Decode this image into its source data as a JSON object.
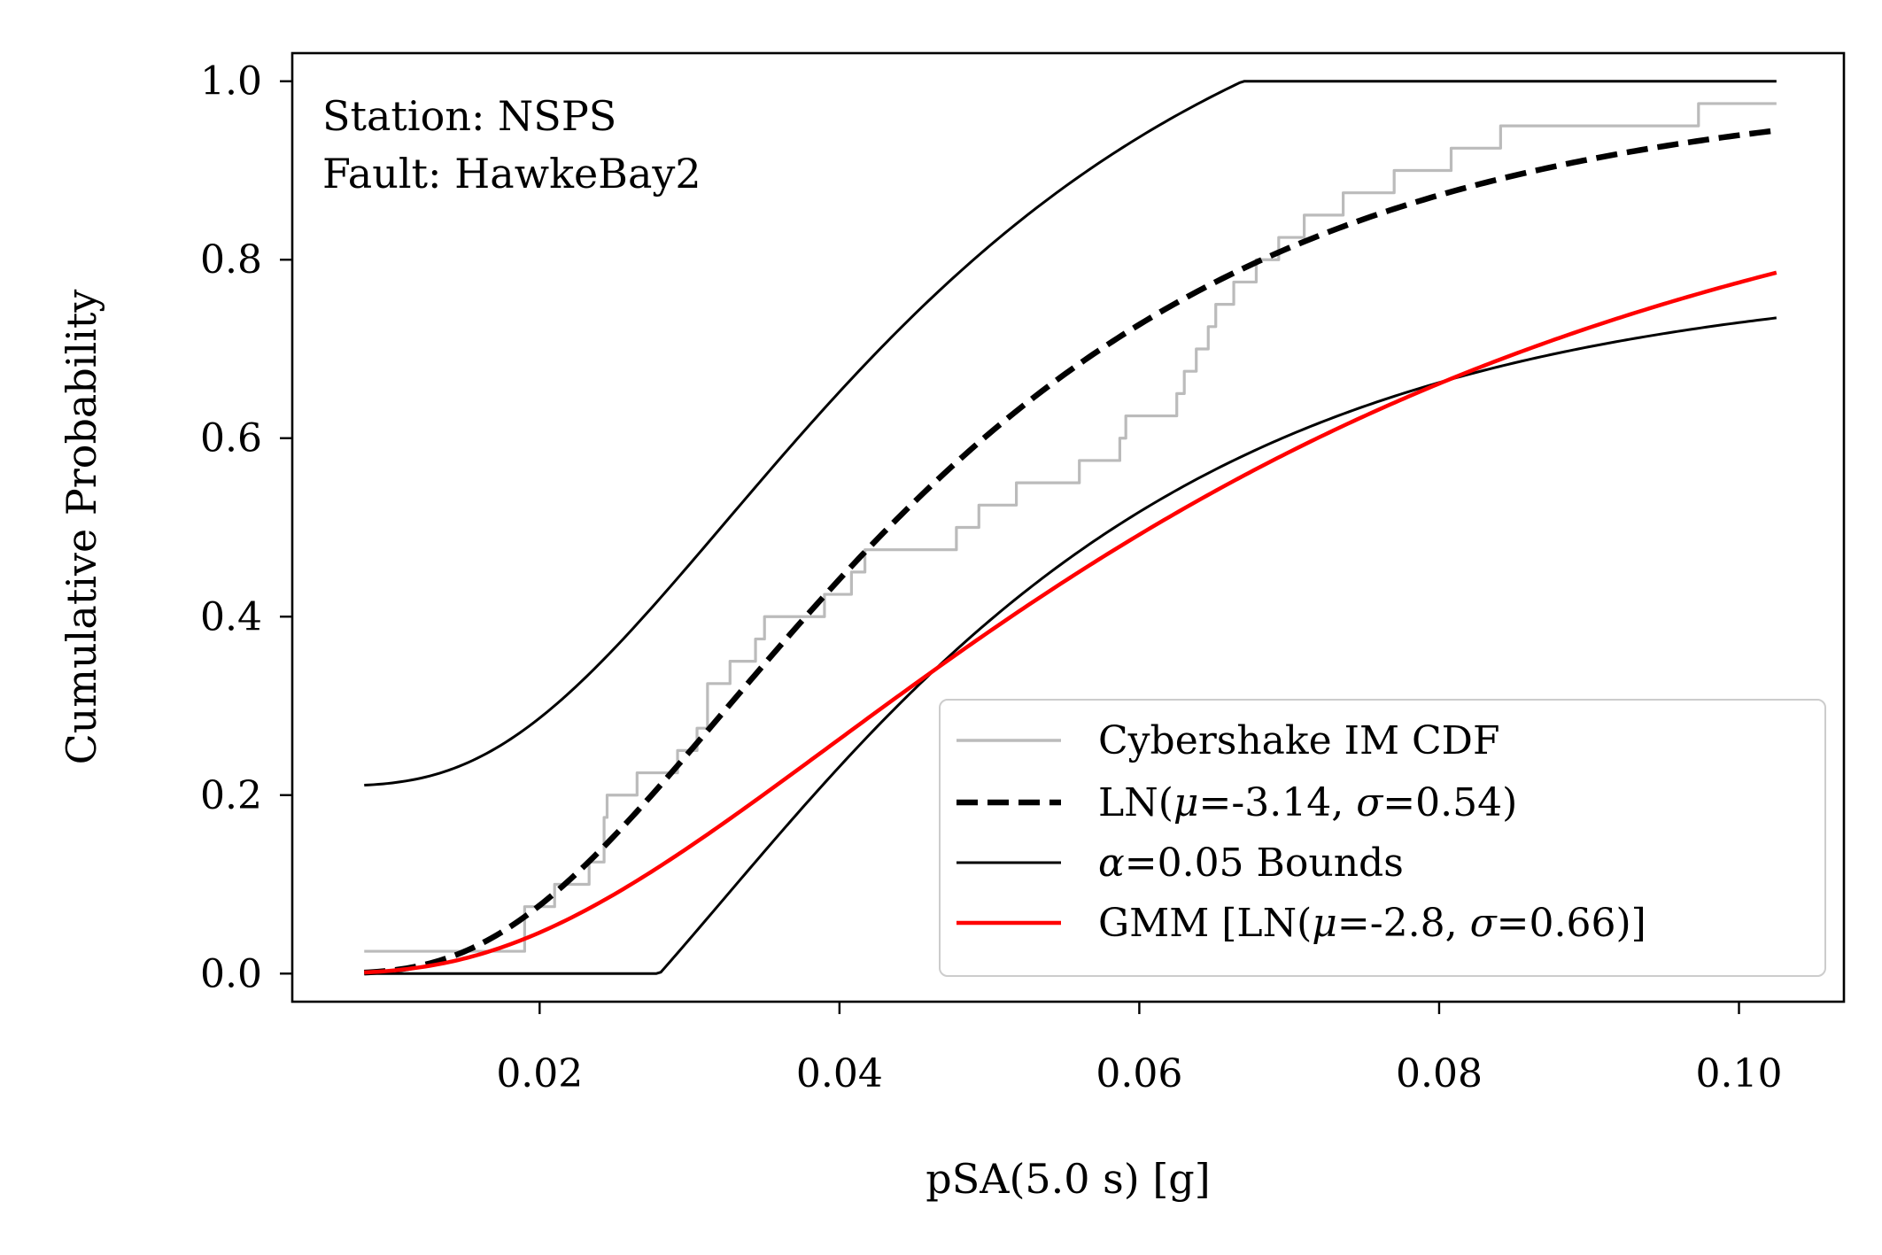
{
  "chart_data": {
    "type": "line",
    "xlabel": "pSA(5.0 s) [g]",
    "ylabel": "Cumulative Probability",
    "xlim": [
      0.0035,
      0.107
    ],
    "ylim": [
      -0.0315,
      1.0315
    ],
    "xticks": [
      0.02,
      0.04,
      0.06,
      0.08,
      0.1
    ],
    "xtick_labels": [
      "0.02",
      "0.04",
      "0.06",
      "0.08",
      "0.10"
    ],
    "yticks": [
      0.0,
      0.2,
      0.4,
      0.6,
      0.8,
      1.0
    ],
    "ytick_labels": [
      "0.0",
      "0.2",
      "0.4",
      "0.6",
      "0.8",
      "1.0"
    ],
    "annotation": [
      "Station: NSPS",
      "Fault: HawkeBay2"
    ],
    "grid": false,
    "legend_position": "lower-right",
    "legend": [
      {
        "key": "ecdf",
        "label": "Cybershake IM CDF"
      },
      {
        "key": "ln",
        "label_prefix": "LN(",
        "label_mid1": "=-3.14, ",
        "label_mid2": "=0.54)"
      },
      {
        "key": "bounds",
        "label_suffix": "=0.05 Bounds"
      },
      {
        "key": "gmm",
        "label_prefix": "GMM [LN(",
        "label_mid1": "=-2.8, ",
        "label_mid2": "=0.66)]"
      }
    ],
    "greek": {
      "mu": "μ",
      "sigma": "σ",
      "alpha": "α"
    },
    "series": [
      {
        "name": "Cybershake IM CDF",
        "kind": "step",
        "color": "#bbbbbb",
        "x": [
          0.0083,
          0.0183,
          0.019,
          0.0195,
          0.021,
          0.0221,
          0.0233,
          0.0243,
          0.0245,
          0.0253,
          0.0265,
          0.0279,
          0.0292,
          0.0305,
          0.0312,
          0.0322,
          0.0327,
          0.0344,
          0.035,
          0.0364,
          0.039,
          0.0408,
          0.0417,
          0.043,
          0.0441,
          0.0454,
          0.0478,
          0.0493,
          0.0513,
          0.0518,
          0.0555,
          0.056,
          0.0566,
          0.0575,
          0.0587,
          0.0591,
          0.0625,
          0.063,
          0.0638,
          0.0646,
          0.0651,
          0.0663,
          0.0678,
          0.0693,
          0.071,
          0.0736,
          0.077,
          0.0808,
          0.0841,
          0.0852,
          0.0895,
          0.0973,
          0.101,
          0.1025
        ],
        "y": [
          0.025,
          0.025,
          0.075,
          0.075,
          0.1,
          0.1,
          0.125,
          0.175,
          0.2,
          0.2,
          0.225,
          0.225,
          0.25,
          0.275,
          0.325,
          0.325,
          0.35,
          0.375,
          0.4,
          0.4,
          0.425,
          0.45,
          0.475,
          0.475,
          0.475,
          0.475,
          0.5,
          0.525,
          0.525,
          0.55,
          0.55,
          0.575,
          0.575,
          0.575,
          0.6,
          0.625,
          0.65,
          0.675,
          0.7,
          0.725,
          0.75,
          0.775,
          0.8,
          0.825,
          0.85,
          0.875,
          0.9,
          0.925,
          0.95,
          0.95,
          0.95,
          0.975,
          0.975,
          0.975
        ]
      },
      {
        "name": "LN",
        "kind": "lognormal_cdf",
        "mu": -3.14,
        "sigma": 0.54,
        "color": "#000000",
        "dash": true,
        "x_range": [
          0.0083,
          0.1025
        ]
      },
      {
        "name": "α=0.05 Bounds (upper)",
        "kind": "lognormal_cdf_shift",
        "mu": -3.14,
        "sigma": 0.54,
        "shift": 0.21,
        "color": "#000000",
        "x_range": [
          0.0083,
          0.1025
        ]
      },
      {
        "name": "α=0.05 Bounds (lower)",
        "kind": "lognormal_cdf_shift",
        "mu": -3.14,
        "sigma": 0.54,
        "shift": -0.21,
        "color": "#000000",
        "x_range": [
          0.0083,
          0.1025
        ]
      },
      {
        "name": "GMM",
        "kind": "lognormal_cdf",
        "mu": -2.8,
        "sigma": 0.66,
        "color": "#ff0000",
        "x_range": [
          0.0083,
          0.1025
        ]
      }
    ]
  }
}
